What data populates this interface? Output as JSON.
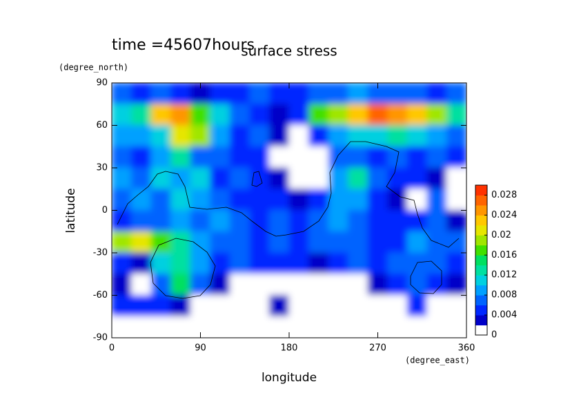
{
  "chart_data": {
    "type": "heatmap",
    "title": "surface stress",
    "subtitle": "time =45607hours",
    "x_label": "longitude",
    "x_unit": "(degree_east)",
    "y_label": "latitude",
    "y_unit": "(degree_north)",
    "xlim": [
      0,
      360
    ],
    "xticks": [
      0,
      90,
      180,
      270,
      360
    ],
    "ylim": [
      -90,
      90
    ],
    "yticks": [
      -90,
      -60,
      -30,
      0,
      30,
      60,
      90
    ],
    "x": [
      10,
      30,
      50,
      70,
      90,
      110,
      130,
      150,
      170,
      190,
      210,
      230,
      250,
      270,
      290,
      310,
      330,
      350
    ],
    "y": [
      82.5,
      67.5,
      52.5,
      37.5,
      22.5,
      7.5,
      -7.5,
      -22.5,
      -37.5,
      -52.5,
      -67.5,
      -82.5
    ],
    "z": [
      [
        0.006,
        0.004,
        0.006,
        0.004,
        0.002,
        0.004,
        0.004,
        0.006,
        0.004,
        0.004,
        0.006,
        0.006,
        0.008,
        0.006,
        0.006,
        0.006,
        0.004,
        0.006
      ],
      [
        0.01,
        0.012,
        0.022,
        0.024,
        0.016,
        0.01,
        0.006,
        0.004,
        0.002,
        0.004,
        0.016,
        0.018,
        0.022,
        0.026,
        0.024,
        0.022,
        0.018,
        0.012
      ],
      [
        0.008,
        0.008,
        0.01,
        0.02,
        0.018,
        0.008,
        0.004,
        0.006,
        0.002,
        0,
        0.004,
        0.008,
        0.01,
        0.01,
        0.012,
        0.01,
        0.008,
        0.006
      ],
      [
        0.006,
        0.004,
        0.008,
        0.012,
        0.006,
        0.006,
        0.004,
        0.004,
        0,
        0,
        0,
        0.006,
        0.006,
        0.004,
        0.006,
        0.004,
        0.006,
        0.004
      ],
      [
        0.008,
        0.006,
        0.01,
        0.008,
        0.01,
        0.004,
        0.006,
        0.004,
        0.002,
        0,
        0,
        0.008,
        0.012,
        0.006,
        0.004,
        0.004,
        0.002,
        0
      ],
      [
        0.006,
        0.008,
        0.006,
        0.01,
        0.008,
        0.006,
        0.004,
        0.004,
        0.004,
        0.002,
        0.004,
        0.008,
        0.008,
        0.004,
        0.002,
        0,
        0.006,
        0
      ],
      [
        0.004,
        0.006,
        0.006,
        0.008,
        0.006,
        0.008,
        0.006,
        0.004,
        0.006,
        0.004,
        0.006,
        0.008,
        0.006,
        0.004,
        0.004,
        0.004,
        0.006,
        0.002
      ],
      [
        0.018,
        0.02,
        0.016,
        0.012,
        0.008,
        0.006,
        0.006,
        0.004,
        0.006,
        0.004,
        0.006,
        0.006,
        0.006,
        0.004,
        0.004,
        0.008,
        0.006,
        0.006
      ],
      [
        0.004,
        0.002,
        0.01,
        0.012,
        0.008,
        0.004,
        0.006,
        0.004,
        0.004,
        0.004,
        0.002,
        0.004,
        0.006,
        0.004,
        0.006,
        0.006,
        0.006,
        0.004
      ],
      [
        0.002,
        0,
        0.006,
        0.014,
        0.006,
        0.002,
        0,
        0,
        0,
        0,
        0,
        0,
        0,
        0.002,
        0.004,
        0.006,
        0.004,
        0.002
      ],
      [
        0.004,
        0.004,
        0.004,
        0.002,
        0,
        0,
        0,
        0,
        0.002,
        0,
        0,
        0,
        0,
        0,
        0,
        0.004,
        0,
        0
      ],
      [
        0,
        0,
        0,
        0,
        0,
        0,
        0,
        0,
        0,
        0,
        0,
        0,
        0,
        0,
        0,
        0,
        0,
        0
      ]
    ],
    "clim": [
      0,
      0.03
    ],
    "cticks": [
      0,
      0.004,
      0.008,
      0.012,
      0.016,
      0.02,
      0.024,
      0.028
    ],
    "colors": [
      "#ffffff",
      "#0000c8",
      "#0028ff",
      "#0064ff",
      "#00a0ff",
      "#00d0e0",
      "#00e0a0",
      "#00e060",
      "#40e000",
      "#a0e600",
      "#e6e600",
      "#ffc800",
      "#ff9600",
      "#ff6400",
      "#ff3200"
    ]
  }
}
